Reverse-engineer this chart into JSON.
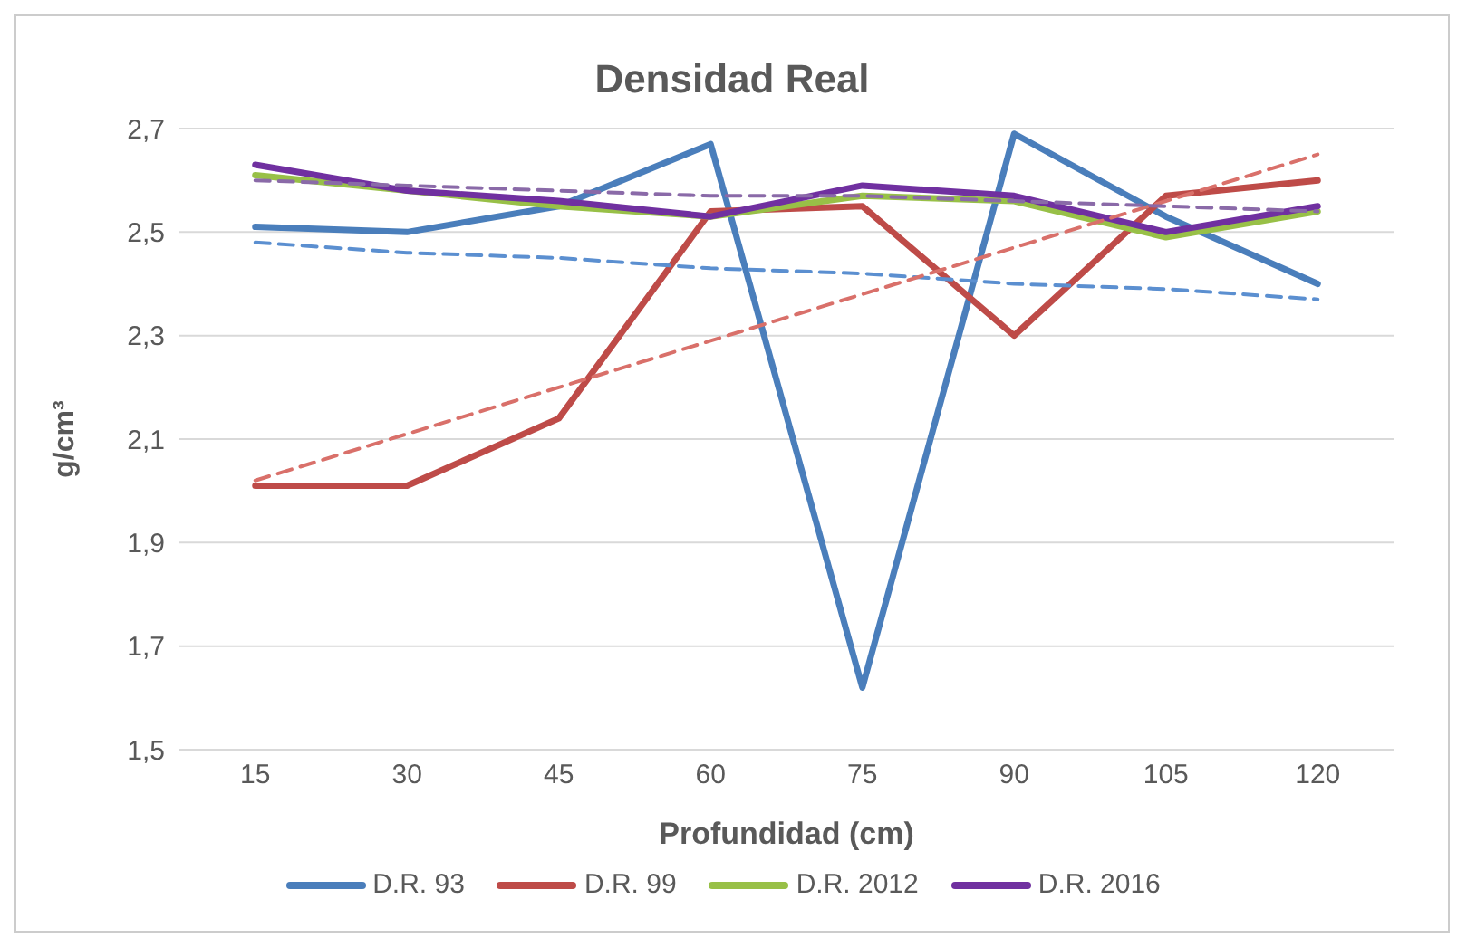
{
  "chart_data": {
    "type": "line",
    "title": "Densidad Real",
    "xlabel": "Profundidad (cm)",
    "ylabel": "g/cm³",
    "x": [
      15,
      30,
      45,
      60,
      75,
      90,
      105,
      120
    ],
    "xlim": [
      7.5,
      127.5
    ],
    "xticks": [
      15,
      30,
      45,
      60,
      75,
      90,
      105,
      120
    ],
    "ylim": [
      1.5,
      2.7
    ],
    "yticks": [
      {
        "value": 1.5,
        "label": "1,5"
      },
      {
        "value": 1.7,
        "label": "1,7"
      },
      {
        "value": 1.9,
        "label": "1,9"
      },
      {
        "value": 2.1,
        "label": "2,1"
      },
      {
        "value": 2.3,
        "label": "2,3"
      },
      {
        "value": 2.5,
        "label": "2,5"
      },
      {
        "value": 2.7,
        "label": "2,7"
      }
    ],
    "grid": "y",
    "legend": "bottom",
    "marker": "none",
    "series": [
      {
        "name": "D.R. 93",
        "color": "#4a7ebb",
        "values": [
          2.51,
          2.5,
          2.55,
          2.67,
          1.62,
          2.69,
          2.53,
          2.4
        ]
      },
      {
        "name": "D.R. 99",
        "color": "#be4b48",
        "values": [
          2.01,
          2.01,
          2.14,
          2.54,
          2.55,
          2.3,
          2.57,
          2.6
        ]
      },
      {
        "name": "D.R. 2012",
        "color": "#98c047",
        "values": [
          2.61,
          2.58,
          2.55,
          2.53,
          2.57,
          2.56,
          2.49,
          2.54
        ]
      },
      {
        "name": "D.R. 2016",
        "color": "#7030a0",
        "values": [
          2.63,
          2.58,
          2.56,
          2.53,
          2.59,
          2.57,
          2.5,
          2.55
        ]
      },
      {
        "type": "line",
        "line_style": "dashed",
        "color": "#5b8fd0",
        "values": [
          2.48,
          2.46,
          2.45,
          2.43,
          2.42,
          2.4,
          2.39,
          2.37
        ]
      },
      {
        "type": "line",
        "line_style": "dashed",
        "color": "#d9706a",
        "values": [
          2.02,
          2.11,
          2.2,
          2.29,
          2.38,
          2.47,
          2.56,
          2.65
        ]
      },
      {
        "type": "line",
        "line_style": "dashed",
        "color": "#8a6aa8",
        "values": [
          2.6,
          2.59,
          2.58,
          2.57,
          2.57,
          2.56,
          2.55,
          2.54
        ]
      }
    ]
  }
}
